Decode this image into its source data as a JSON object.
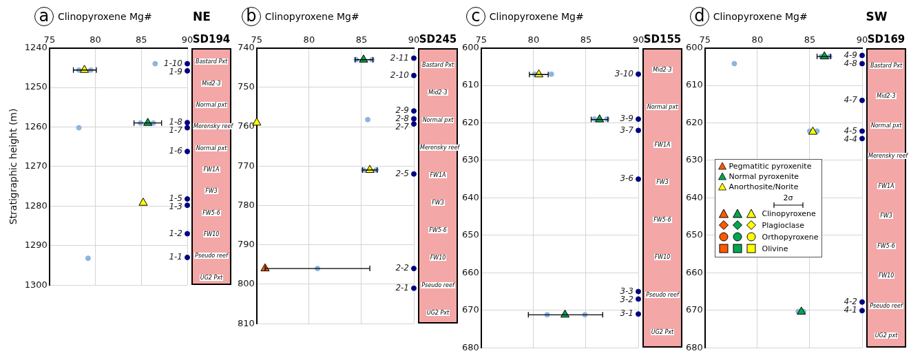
{
  "chart_data": [
    {
      "type": "scatter",
      "title": "a",
      "subtitle": "NE",
      "y2label": "SD194",
      "xlabel": "Clinopyroxene Mg#",
      "ylabel": "Stratigraphic height (m)",
      "xlim": [
        75,
        90
      ],
      "xticks": [
        75,
        80,
        85,
        90
      ],
      "ylim": [
        1300,
        1240
      ],
      "yticks": [
        1240,
        1250,
        1260,
        1270,
        1280,
        1290,
        1300
      ],
      "grid": true,
      "legend": false,
      "annotations": [
        "Bastard Pxt",
        "Mid2-3",
        "Normal pxt",
        "Merensky reef",
        "Normal pxt",
        "FW1A",
        "FW3",
        "FW5-6",
        "FW10",
        "Pseudo reef",
        "UG2 Pxt"
      ],
      "series": [
        {
          "color": "#8db4e2",
          "marker": "circle",
          "x": [
            78.2,
            79.5,
            86.5,
            84.9,
            86.3,
            78.2,
            79.2
          ],
          "values": [
            1245.6,
            1245.6,
            1244,
            1259,
            1259,
            1260.2,
            1293.2
          ]
        },
        {
          "color": "#ffff00",
          "marker": "triangle",
          "x": [
            78.8,
            85.2
          ],
          "values": [
            1245.6,
            1279.2
          ],
          "xerrors": [
            [
              77.6,
              80.1
            ],
            null
          ]
        },
        {
          "color": "#00a651",
          "marker": "triangle",
          "x": [
            85.7
          ],
          "values": [
            1259
          ],
          "xerrors": [
            [
              84.2,
              87.2
            ]
          ]
        },
        {
          "color": "#000080",
          "marker": "circle",
          "x": [
            90,
            90,
            90,
            90,
            90,
            90,
            90,
            90,
            90
          ],
          "values": [
            1244,
            1245.8,
            1258.9,
            1260.2,
            1266.2,
            1278.2,
            1279.8,
            1287,
            1293
          ],
          "value_labels": [
            "1-10",
            "1-9",
            "1-8",
            "1-7",
            "1-6",
            "1-5",
            "1-3",
            "1-2",
            "1-1"
          ]
        }
      ]
    },
    {
      "type": "scatter",
      "title": "b",
      "y2label": "SD245",
      "xlabel": "Clinopyroxene Mg#",
      "xlim": [
        75,
        90
      ],
      "xticks": [
        75,
        80,
        85,
        90
      ],
      "ylim": [
        810,
        740
      ],
      "yticks": [
        740,
        750,
        760,
        770,
        780,
        790,
        800,
        810
      ],
      "grid": true,
      "legend": false,
      "annotations": [
        "Bastard Pxt",
        "Mid2-3",
        "Normal pxt",
        "Merensky reef",
        "FW1A",
        "FW3",
        "FW5-6",
        "FW10",
        "Pseudo reef",
        "UG2 Pxt"
      ],
      "series": [
        {
          "color": "#8db4e2",
          "marker": "circle",
          "x": [
            84.5,
            86,
            85.6,
            85.2,
            86.4,
            80.8
          ],
          "values": [
            743,
            743,
            758.2,
            771,
            771,
            796
          ]
        },
        {
          "color": "#ff5a00",
          "marker": "triangle",
          "x": [
            75.8
          ],
          "values": [
            796
          ],
          "xerrors": [
            [
              75.8,
              85.8
            ]
          ]
        },
        {
          "color": "#00a651",
          "marker": "triangle",
          "x": [
            85.2
          ],
          "values": [
            743
          ],
          "xerrors": [
            [
              84.4,
              86.1
            ]
          ]
        },
        {
          "color": "#ffff00",
          "marker": "triangle",
          "x": [
            75,
            85.8
          ],
          "values": [
            759,
            771
          ],
          "xerrors": [
            null,
            [
              85.1,
              86.5
            ]
          ]
        },
        {
          "color": "#000080",
          "marker": "circle",
          "x": [
            90,
            90,
            90,
            90,
            90,
            90,
            90,
            90
          ],
          "values": [
            742.6,
            747,
            756,
            758,
            759.3,
            772,
            796,
            801
          ],
          "value_labels": [
            "2-11",
            "2-10",
            "2-9",
            "2-8",
            "2-7",
            "2-5",
            "2-2",
            "2-1"
          ]
        }
      ]
    },
    {
      "type": "scatter",
      "title": "c",
      "y2label": "SD155",
      "xlabel": "Clinopyroxene Mg#",
      "xlim": [
        75,
        90
      ],
      "xticks": [
        75,
        80,
        85,
        90
      ],
      "ylim": [
        680,
        600
      ],
      "yticks": [
        600,
        610,
        620,
        630,
        640,
        650,
        660,
        670,
        680
      ],
      "grid": true,
      "legend": false,
      "annotations": [
        "Mid2-3",
        "Normal pxt",
        "FW1A",
        "FW3",
        "FW5-6",
        "FW10",
        "Pseudo reef",
        "UG2 Pxt"
      ],
      "series": [
        {
          "color": "#8db4e2",
          "marker": "circle",
          "x": [
            80.1,
            81.7,
            85.8,
            87,
            81.3,
            84.9
          ],
          "values": [
            607,
            607,
            619,
            619,
            671.2,
            671.2
          ]
        },
        {
          "color": "#ffff00",
          "marker": "triangle",
          "x": [
            80.5
          ],
          "values": [
            607.1
          ],
          "xerrors": [
            [
              79.6,
              81.4
            ]
          ]
        },
        {
          "color": "#00a651",
          "marker": "triangle",
          "x": [
            86.3,
            83
          ],
          "values": [
            619.1,
            671.2
          ],
          "xerrors": [
            [
              85.5,
              87.1
            ],
            [
              79.5,
              86.6
            ]
          ]
        },
        {
          "color": "#000080",
          "marker": "circle",
          "x": [
            90,
            90,
            90,
            90,
            90,
            90,
            90
          ],
          "values": [
            607,
            619,
            622,
            635,
            665,
            667,
            671
          ],
          "value_labels": [
            "3-10",
            "3-9",
            "3-7",
            "3-6",
            "3-3",
            "3-2",
            "3-1"
          ]
        }
      ]
    },
    {
      "type": "scatter",
      "title": "d",
      "subtitle": "SW",
      "y2label": "SD169",
      "xlabel": "Clinopyroxene Mg#",
      "xlim": [
        75,
        90
      ],
      "xticks": [
        75,
        80,
        85,
        90
      ],
      "ylim": [
        680,
        600
      ],
      "yticks": [
        600,
        610,
        620,
        630,
        640,
        650,
        660,
        670,
        680
      ],
      "grid": true,
      "legend": "center left",
      "legend_title": "2σ",
      "annotations": [
        {
          "text": "Clinopyroxene"
        },
        {
          "text": "Plagioclase"
        },
        {
          "text": "Orthopyroxene"
        },
        {
          "text": "Olivine"
        },
        "Bastard Pxt",
        "Mid2-3",
        "Normal pxt",
        "Merensky reef",
        "FW1A",
        "FW3",
        "FW5-6",
        "FW10",
        "Pseudo reef",
        "UG2 pxt"
      ],
      "series": [
        {
          "color": "#8db4e2",
          "marker": "circle",
          "x": [
            77.8,
            86.1,
            86.9,
            85,
            85.7,
            83.9,
            84.4
          ],
          "values": [
            604.2,
            602.3,
            602.3,
            622.2,
            622.2,
            670.3,
            670.3
          ]
        },
        {
          "name": "Pegmatitic pyroxenite",
          "color": "#ff5a00",
          "marker": "triangle"
        },
        {
          "name": "Normal pyroxenite",
          "color": "#00a651",
          "marker": "triangle",
          "x": [
            86.4,
            84.2
          ],
          "values": [
            602.3,
            670.4
          ],
          "xerrors": [
            [
              85.7,
              87
            ],
            null
          ]
        },
        {
          "name": "Anorthosite/Norite",
          "color": "#ffff00",
          "marker": "triangle",
          "x": [
            85.3
          ],
          "values": [
            622.4
          ]
        },
        {
          "color": "#000080",
          "marker": "circle",
          "x": [
            90,
            90,
            90,
            90,
            90,
            90,
            90
          ],
          "values": [
            602,
            604.2,
            614,
            622.2,
            624.2,
            667.8,
            670.1
          ],
          "value_labels": [
            "4-9",
            "4-8",
            "4-7",
            "4-5",
            "4-4",
            "4-2",
            "4-1"
          ]
        }
      ]
    }
  ]
}
